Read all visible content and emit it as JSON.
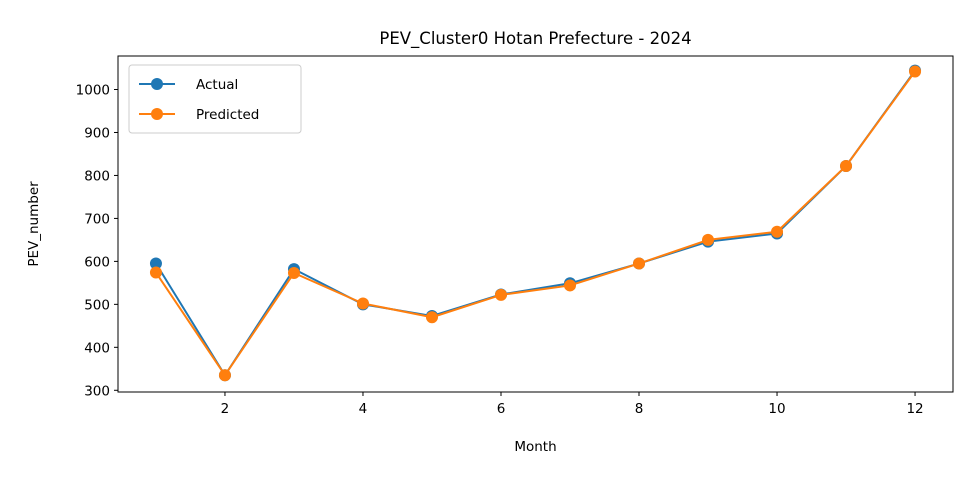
{
  "chart_data": {
    "type": "line",
    "title": "PEV_Cluster0 Hotan Prefecture - 2024",
    "xlabel": "Month",
    "ylabel": "PEV_number",
    "x": [
      1,
      2,
      3,
      4,
      5,
      6,
      7,
      8,
      9,
      10,
      11,
      12
    ],
    "xlim": [
      0.45,
      12.55
    ],
    "ylim": [
      296,
      1078
    ],
    "xticks": [
      2,
      4,
      6,
      8,
      10,
      12
    ],
    "yticks": [
      300,
      400,
      500,
      600,
      700,
      800,
      900,
      1000
    ],
    "grid": false,
    "legend_position": "top-left",
    "series": [
      {
        "name": "Actual",
        "color": "#1f77b4",
        "values": [
          595,
          335,
          582,
          500,
          473,
          523,
          549,
          595,
          646,
          665,
          822,
          1044
        ]
      },
      {
        "name": "Predicted",
        "color": "#ff7f0e",
        "values": [
          574,
          335,
          573,
          502,
          470,
          522,
          544,
          595,
          650,
          669,
          822,
          1042
        ]
      }
    ]
  }
}
